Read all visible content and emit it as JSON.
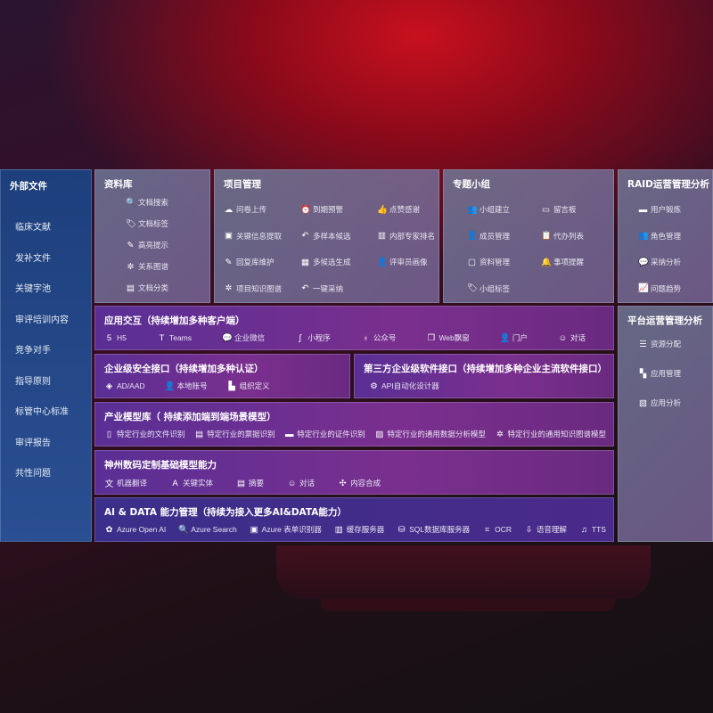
{
  "sidebar": {
    "title": "外部文件",
    "items": [
      "临床文献",
      "发补文件",
      "关键字池",
      "审评培训内容",
      "竞争对手",
      "指导原则",
      "标管中心标准",
      "审评报告",
      "共性问题"
    ]
  },
  "library": {
    "title": "资料库",
    "items": [
      {
        "icon": "doc-search-icon",
        "label": "文档搜索"
      },
      {
        "icon": "tag-icon",
        "label": "文档标签"
      },
      {
        "icon": "pen-icon",
        "label": "高亮提示"
      },
      {
        "icon": "graph-icon",
        "label": "关系图谱"
      },
      {
        "icon": "doc-category-icon",
        "label": "文档分类"
      }
    ]
  },
  "project": {
    "title": "项目管理",
    "items": [
      {
        "icon": "cloud-upload-icon",
        "label": "问卷上传"
      },
      {
        "icon": "alarm-icon",
        "label": "到期预警"
      },
      {
        "icon": "thumbs-up-icon",
        "label": "点赞感谢"
      },
      {
        "icon": "window-icon",
        "label": "关键信息提取"
      },
      {
        "icon": "reply-icon",
        "label": "多样本候选"
      },
      {
        "icon": "ranking-icon",
        "label": "内部专家排名"
      },
      {
        "icon": "edit-icon",
        "label": "回复库维护"
      },
      {
        "icon": "puzzle-icon",
        "label": "多候选生成"
      },
      {
        "icon": "user-icon",
        "label": "评审员画像"
      },
      {
        "icon": "graph-icon",
        "label": "项目知识图谱"
      },
      {
        "icon": "reply-icon",
        "label": "一键采纳"
      }
    ]
  },
  "group": {
    "title": "专题小组",
    "items": [
      {
        "icon": "group-icon",
        "label": "小组建立"
      },
      {
        "icon": "bbs-icon",
        "label": "留言板"
      },
      {
        "icon": "user-add-icon",
        "label": "成员管理"
      },
      {
        "icon": "clipboard-icon",
        "label": "代办列表"
      },
      {
        "icon": "folder-icon",
        "label": "资料管理"
      },
      {
        "icon": "bell-icon",
        "label": "事项提醒"
      },
      {
        "icon": "tag-icon",
        "label": "小组标签"
      }
    ]
  },
  "raid": {
    "title": "RAID运营管理分析",
    "items": [
      {
        "icon": "id-card-icon",
        "label": "用户锻炼"
      },
      {
        "icon": "group-icon",
        "label": "角色管理"
      },
      {
        "icon": "qa-icon",
        "label": "采纳分析"
      },
      {
        "icon": "trend-icon",
        "label": "问题趋势"
      }
    ]
  },
  "platform": {
    "title": "平台运营管理分析",
    "items": [
      {
        "icon": "list-icon",
        "label": "资源分配"
      },
      {
        "icon": "apps-icon",
        "label": "应用管理"
      },
      {
        "icon": "chart-icon",
        "label": "应用分析"
      }
    ]
  },
  "app": {
    "title": "应用交互（持续增加多种客户端）",
    "items": [
      {
        "icon": "html5-icon",
        "label": "H5"
      },
      {
        "icon": "teams-icon",
        "label": "Teams"
      },
      {
        "icon": "wecom-icon",
        "label": "企业微信"
      },
      {
        "icon": "miniprogram-icon",
        "label": "小程序"
      },
      {
        "icon": "public-account-icon",
        "label": "公众号"
      },
      {
        "icon": "web-window-icon",
        "label": "Web飘窗"
      },
      {
        "icon": "portal-icon",
        "label": "门户"
      },
      {
        "icon": "chat-icon",
        "label": "对话"
      }
    ]
  },
  "security": {
    "title": "企业级安全接口（持续增加多种认证）",
    "items": [
      {
        "icon": "ad-icon",
        "label": "AD/AAD"
      },
      {
        "icon": "local-account-icon",
        "label": "本地账号"
      },
      {
        "icon": "org-icon",
        "label": "组织定义"
      }
    ]
  },
  "thirdparty": {
    "title": "第三方企业级软件接口（持续增加多种企业主流软件接口）",
    "items": [
      {
        "icon": "gear-icon",
        "label": "API自动化设计器"
      }
    ]
  },
  "industry": {
    "title": "产业模型库（ 持续添加端到端场景模型）",
    "items": [
      {
        "icon": "file-icon",
        "label": "特定行业的文件识别"
      },
      {
        "icon": "receipt-icon",
        "label": "特定行业的票据识别"
      },
      {
        "icon": "id-card-icon",
        "label": "特定行业的证件识别"
      },
      {
        "icon": "analysis-icon",
        "label": "特定行业的通用数据分析模型"
      },
      {
        "icon": "graph-icon",
        "label": "特定行业的通用知识图谱模型"
      }
    ]
  },
  "base": {
    "title": "神州数码定制基础模型能力",
    "items": [
      {
        "icon": "translate-icon",
        "label": "机器翻译"
      },
      {
        "icon": "entity-icon",
        "label": "关键实体"
      },
      {
        "icon": "summary-icon",
        "label": "摘要"
      },
      {
        "icon": "chat-icon",
        "label": "对话"
      },
      {
        "icon": "compose-icon",
        "label": "内容合成"
      }
    ]
  },
  "aidata": {
    "title": "AI & DATA 能力管理（持续为接入更多AI&DATA能力）",
    "items": [
      {
        "icon": "openai-icon",
        "label": "Azure Open AI"
      },
      {
        "icon": "search-icon",
        "label": "Azure Search"
      },
      {
        "icon": "form-icon",
        "label": "Azure 表单识别器"
      },
      {
        "icon": "cache-icon",
        "label": "缓存服务器"
      },
      {
        "icon": "sql-icon",
        "label": "SQL数据库服务器"
      },
      {
        "icon": "ocr-icon",
        "label": "OCR"
      },
      {
        "icon": "speech-icon",
        "label": "语音理解"
      },
      {
        "icon": "tts-icon",
        "label": "TTS"
      }
    ]
  }
}
